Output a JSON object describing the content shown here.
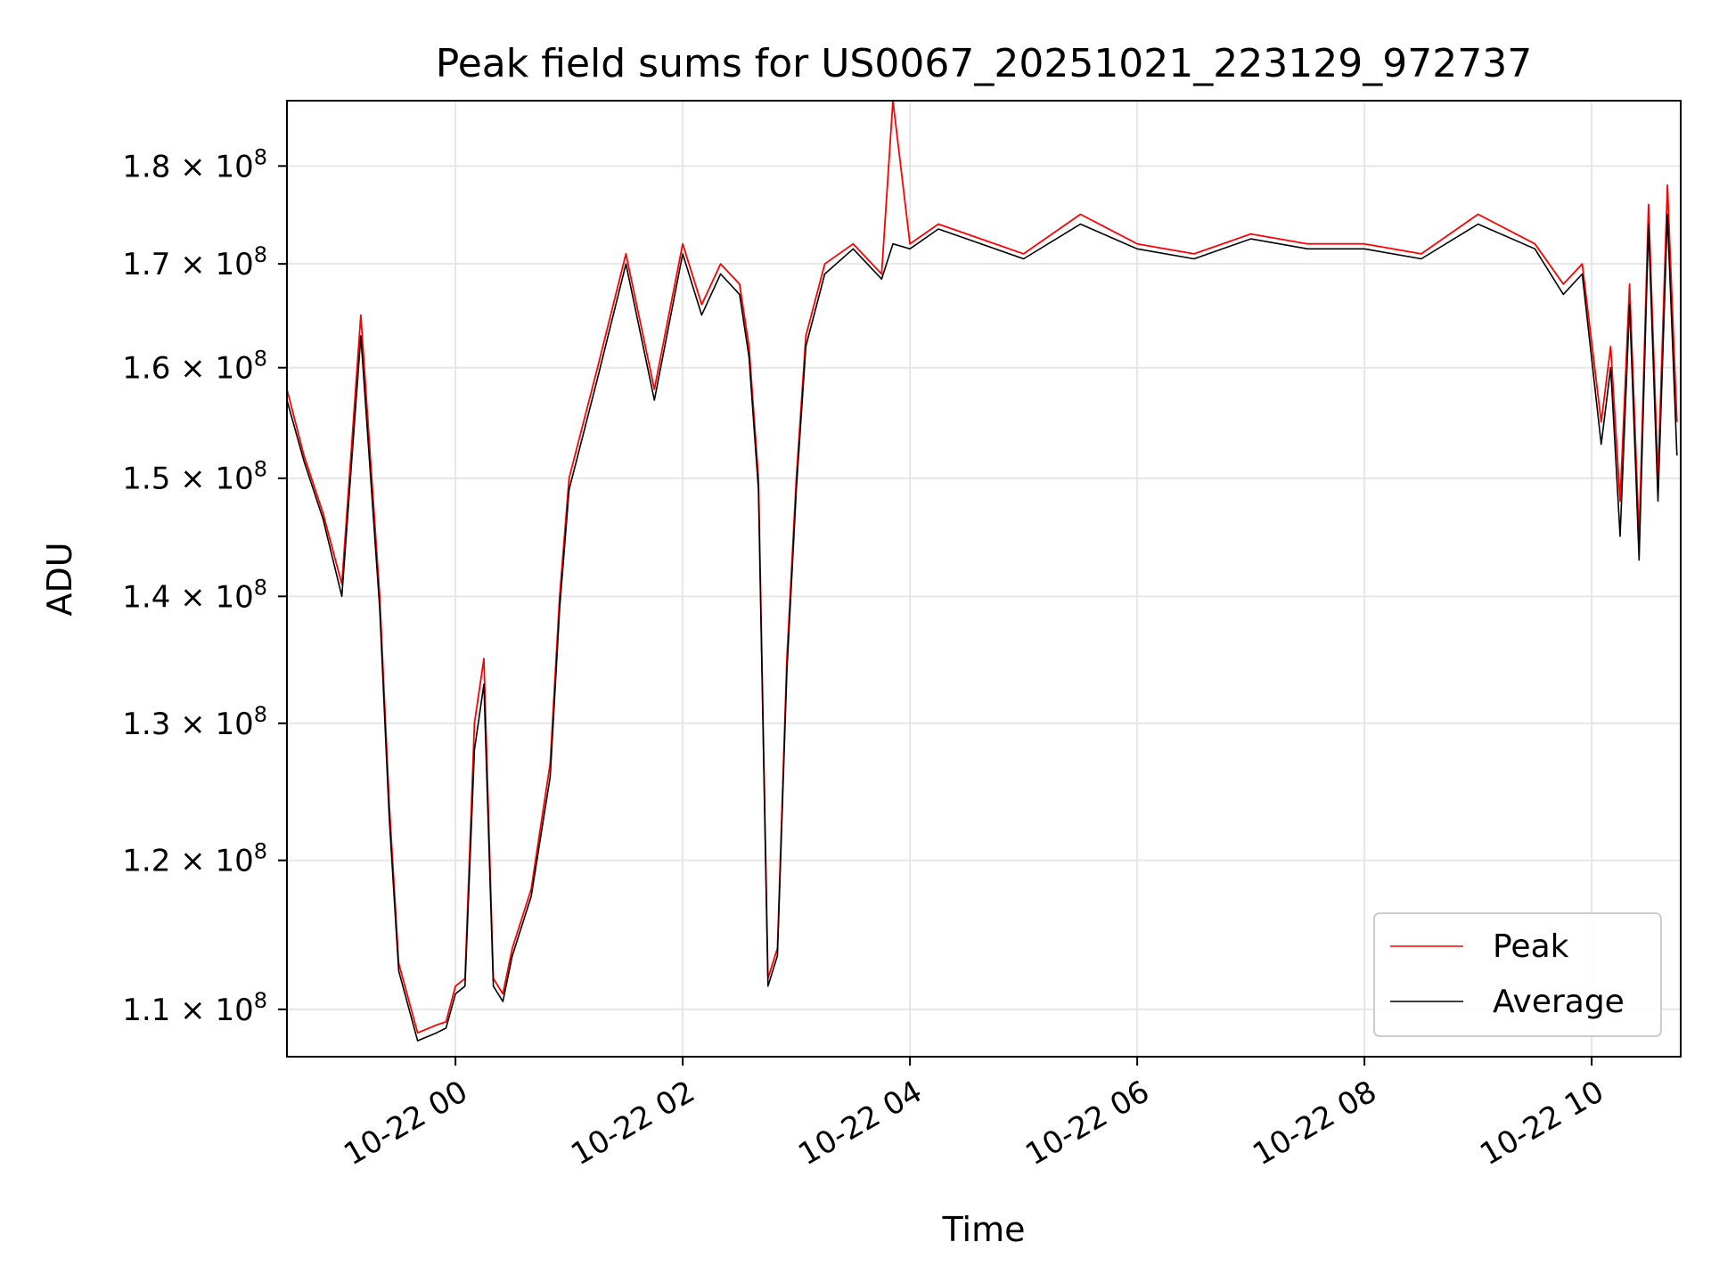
{
  "chart_data": {
    "type": "line",
    "title": "Peak field sums for US0067_20251021_223129_972737",
    "xlabel": "Time",
    "ylabel": "ADU",
    "y_scale": "log",
    "grid": true,
    "legend_position": "lower-right",
    "xlim": [
      "2025-10-21 22:31",
      "2025-10-22 10:47"
    ],
    "ylim": [
      107000000,
      187000000
    ],
    "x_ticks": [
      {
        "value": "2025-10-22 00:00",
        "label": "10-22 00"
      },
      {
        "value": "2025-10-22 02:00",
        "label": "10-22 02"
      },
      {
        "value": "2025-10-22 04:00",
        "label": "10-22 04"
      },
      {
        "value": "2025-10-22 06:00",
        "label": "10-22 06"
      },
      {
        "value": "2025-10-22 08:00",
        "label": "10-22 08"
      },
      {
        "value": "2025-10-22 10:00",
        "label": "10-22 10"
      }
    ],
    "y_ticks": [
      {
        "value": 110000000,
        "mant": "1.1"
      },
      {
        "value": 120000000,
        "mant": "1.2"
      },
      {
        "value": 130000000,
        "mant": "1.3"
      },
      {
        "value": 140000000,
        "mant": "1.4"
      },
      {
        "value": 150000000,
        "mant": "1.5"
      },
      {
        "value": 160000000,
        "mant": "1.6"
      },
      {
        "value": 170000000,
        "mant": "1.7"
      },
      {
        "value": 180000000,
        "mant": "1.8"
      }
    ],
    "y_tick_suffix": "× 10",
    "y_tick_exponent": "8",
    "series": [
      {
        "name": "Peak",
        "color": "#ff0000"
      },
      {
        "name": "Average",
        "color": "#000000"
      }
    ],
    "x": [
      "2025-10-21 22:31",
      "2025-10-21 22:40",
      "2025-10-21 22:50",
      "2025-10-21 23:00",
      "2025-10-21 23:10",
      "2025-10-21 23:20",
      "2025-10-21 23:25",
      "2025-10-21 23:30",
      "2025-10-21 23:40",
      "2025-10-21 23:50",
      "2025-10-21 23:55",
      "2025-10-22 00:00",
      "2025-10-22 00:05",
      "2025-10-22 00:10",
      "2025-10-22 00:15",
      "2025-10-22 00:20",
      "2025-10-22 00:25",
      "2025-10-22 00:30",
      "2025-10-22 00:40",
      "2025-10-22 00:50",
      "2025-10-22 00:55",
      "2025-10-22 01:00",
      "2025-10-22 01:15",
      "2025-10-22 01:30",
      "2025-10-22 01:45",
      "2025-10-22 02:00",
      "2025-10-22 02:10",
      "2025-10-22 02:20",
      "2025-10-22 02:30",
      "2025-10-22 02:35",
      "2025-10-22 02:40",
      "2025-10-22 02:45",
      "2025-10-22 02:50",
      "2025-10-22 02:55",
      "2025-10-22 03:00",
      "2025-10-22 03:05",
      "2025-10-22 03:15",
      "2025-10-22 03:30",
      "2025-10-22 03:45",
      "2025-10-22 03:51",
      "2025-10-22 04:00",
      "2025-10-22 04:15",
      "2025-10-22 04:30",
      "2025-10-22 05:00",
      "2025-10-22 05:30",
      "2025-10-22 06:00",
      "2025-10-22 06:30",
      "2025-10-22 07:00",
      "2025-10-22 07:30",
      "2025-10-22 08:00",
      "2025-10-22 08:30",
      "2025-10-22 09:00",
      "2025-10-22 09:30",
      "2025-10-22 09:45",
      "2025-10-22 09:55",
      "2025-10-22 10:05",
      "2025-10-22 10:10",
      "2025-10-22 10:15",
      "2025-10-22 10:20",
      "2025-10-22 10:25",
      "2025-10-22 10:30",
      "2025-10-22 10:35",
      "2025-10-22 10:40",
      "2025-10-22 10:45"
    ],
    "peak": [
      158000000,
      152000000,
      147000000,
      141000000,
      165000000,
      140000000,
      124000000,
      113000000,
      108500000,
      109000000,
      109200000,
      111500000,
      112000000,
      130000000,
      135000000,
      112000000,
      111000000,
      114000000,
      118000000,
      127000000,
      140000000,
      150000000,
      160000000,
      171000000,
      158000000,
      172000000,
      166000000,
      170000000,
      168000000,
      162000000,
      150000000,
      112000000,
      114000000,
      135000000,
      150000000,
      163000000,
      170000000,
      172000000,
      169000000,
      187000000,
      172000000,
      174000000,
      173000000,
      171000000,
      175000000,
      172000000,
      171000000,
      173000000,
      172000000,
      172000000,
      171000000,
      175000000,
      172000000,
      168000000,
      170000000,
      155000000,
      162000000,
      148000000,
      168000000,
      145000000,
      176000000,
      150000000,
      178000000,
      155000000
    ],
    "average": [
      157000000,
      151500000,
      146500000,
      140000000,
      163000000,
      139000000,
      123000000,
      112500000,
      108000000,
      108500000,
      108800000,
      111000000,
      111500000,
      128000000,
      133000000,
      111500000,
      110500000,
      113500000,
      117500000,
      126000000,
      139000000,
      149000000,
      159000000,
      170000000,
      157000000,
      171000000,
      165000000,
      169000000,
      167000000,
      161000000,
      149000000,
      111500000,
      113500000,
      134000000,
      149000000,
      162000000,
      169000000,
      171500000,
      168500000,
      172000000,
      171500000,
      173500000,
      172500000,
      170500000,
      174000000,
      171500000,
      170500000,
      172500000,
      171500000,
      171500000,
      170500000,
      174000000,
      171500000,
      167000000,
      169000000,
      153000000,
      160000000,
      145000000,
      166000000,
      143000000,
      174000000,
      148000000,
      175000000,
      152000000
    ]
  }
}
